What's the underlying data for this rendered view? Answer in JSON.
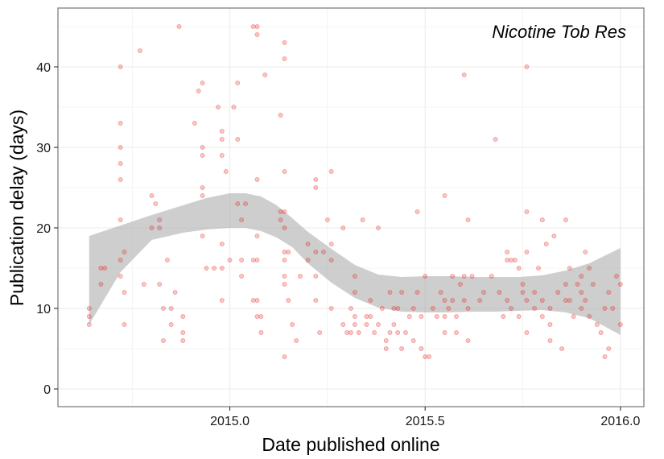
{
  "chart_data": {
    "type": "scatter",
    "title": "Nicotine Tob Res",
    "xlabel": "Date published online",
    "ylabel": "Publication delay (days)",
    "xlim": [
      2014.56,
      2016.06
    ],
    "ylim": [
      -2.2,
      47.3
    ],
    "x_ticks": [
      2015.0,
      2015.5,
      2016.0
    ],
    "x_tick_labels": [
      "2015.0",
      "2015.5",
      "2016.0"
    ],
    "y_ticks": [
      0,
      10,
      20,
      30,
      40
    ],
    "y_tick_labels": [
      "0",
      "10",
      "20",
      "30",
      "40"
    ],
    "grid": true,
    "legend": "none",
    "colors": {
      "points": "#e41a1c",
      "smooth_band": "#a6a6a6",
      "panel_border": "#7f7f7f",
      "grid": "#ebebeb"
    },
    "series": [
      {
        "values": [
          [
            2014.64,
            10
          ],
          [
            2014.64,
            9
          ],
          [
            2014.64,
            8
          ],
          [
            2014.67,
            15
          ],
          [
            2014.67,
            13
          ],
          [
            2014.68,
            15
          ],
          [
            2014.72,
            40
          ],
          [
            2014.72,
            33
          ],
          [
            2014.72,
            30
          ],
          [
            2014.72,
            28
          ],
          [
            2014.72,
            26
          ],
          [
            2014.72,
            21
          ],
          [
            2014.72,
            16
          ],
          [
            2014.72,
            14
          ],
          [
            2014.73,
            17
          ],
          [
            2014.73,
            12
          ],
          [
            2014.73,
            8
          ],
          [
            2014.77,
            42
          ],
          [
            2014.78,
            13
          ],
          [
            2014.8,
            24
          ],
          [
            2014.8,
            20
          ],
          [
            2014.81,
            23
          ],
          [
            2014.82,
            21
          ],
          [
            2014.82,
            20
          ],
          [
            2014.82,
            13
          ],
          [
            2014.83,
            10
          ],
          [
            2014.83,
            6
          ],
          [
            2014.84,
            16
          ],
          [
            2014.85,
            10
          ],
          [
            2014.85,
            8
          ],
          [
            2014.86,
            12
          ],
          [
            2014.87,
            45
          ],
          [
            2014.88,
            9
          ],
          [
            2014.88,
            7
          ],
          [
            2014.88,
            6
          ],
          [
            2014.91,
            33
          ],
          [
            2014.92,
            37
          ],
          [
            2014.93,
            38
          ],
          [
            2014.93,
            30
          ],
          [
            2014.93,
            29
          ],
          [
            2014.93,
            25
          ],
          [
            2014.93,
            24
          ],
          [
            2014.93,
            19
          ],
          [
            2014.94,
            15
          ],
          [
            2014.96,
            15
          ],
          [
            2014.97,
            35
          ],
          [
            2014.98,
            32
          ],
          [
            2014.98,
            31
          ],
          [
            2014.98,
            29
          ],
          [
            2014.98,
            18
          ],
          [
            2014.98,
            15
          ],
          [
            2014.98,
            11
          ],
          [
            2014.99,
            27
          ],
          [
            2015.0,
            16
          ],
          [
            2015.01,
            35
          ],
          [
            2015.02,
            38
          ],
          [
            2015.02,
            31
          ],
          [
            2015.02,
            23
          ],
          [
            2015.03,
            21
          ],
          [
            2015.03,
            16
          ],
          [
            2015.03,
            14
          ],
          [
            2015.04,
            23
          ],
          [
            2015.06,
            45
          ],
          [
            2015.07,
            45
          ],
          [
            2015.07,
            44
          ],
          [
            2015.07,
            26
          ],
          [
            2015.07,
            19
          ],
          [
            2015.06,
            16
          ],
          [
            2015.07,
            16
          ],
          [
            2015.06,
            11
          ],
          [
            2015.07,
            11
          ],
          [
            2015.07,
            9
          ],
          [
            2015.08,
            9
          ],
          [
            2015.08,
            7
          ],
          [
            2015.09,
            39
          ],
          [
            2015.13,
            34
          ],
          [
            2015.13,
            22
          ],
          [
            2015.13,
            21
          ],
          [
            2015.14,
            43
          ],
          [
            2015.14,
            41
          ],
          [
            2015.14,
            27
          ],
          [
            2015.14,
            22
          ],
          [
            2015.14,
            20
          ],
          [
            2015.14,
            17
          ],
          [
            2015.14,
            16
          ],
          [
            2015.14,
            14
          ],
          [
            2015.14,
            13
          ],
          [
            2015.14,
            4
          ],
          [
            2015.15,
            17
          ],
          [
            2015.15,
            11
          ],
          [
            2015.16,
            8
          ],
          [
            2015.17,
            6
          ],
          [
            2015.18,
            14
          ],
          [
            2015.2,
            18
          ],
          [
            2015.2,
            16
          ],
          [
            2015.22,
            26
          ],
          [
            2015.22,
            25
          ],
          [
            2015.22,
            17
          ],
          [
            2015.22,
            14
          ],
          [
            2015.22,
            11
          ],
          [
            2015.23,
            7
          ],
          [
            2015.24,
            17
          ],
          [
            2015.25,
            21
          ],
          [
            2015.26,
            27
          ],
          [
            2015.26,
            18
          ],
          [
            2015.26,
            16
          ],
          [
            2015.26,
            10
          ],
          [
            2015.29,
            20
          ],
          [
            2015.29,
            8
          ],
          [
            2015.3,
            7
          ],
          [
            2015.31,
            7
          ],
          [
            2015.31,
            10
          ],
          [
            2015.32,
            14
          ],
          [
            2015.32,
            12
          ],
          [
            2015.32,
            9
          ],
          [
            2015.32,
            8
          ],
          [
            2015.33,
            7
          ],
          [
            2015.34,
            21
          ],
          [
            2015.35,
            9
          ],
          [
            2015.35,
            8
          ],
          [
            2015.36,
            11
          ],
          [
            2015.36,
            9
          ],
          [
            2015.37,
            7
          ],
          [
            2015.38,
            20
          ],
          [
            2015.38,
            8
          ],
          [
            2015.39,
            10
          ],
          [
            2015.4,
            6
          ],
          [
            2015.4,
            5
          ],
          [
            2015.41,
            7
          ],
          [
            2015.41,
            12
          ],
          [
            2015.42,
            10
          ],
          [
            2015.42,
            8
          ],
          [
            2015.43,
            10
          ],
          [
            2015.43,
            7
          ],
          [
            2015.44,
            12
          ],
          [
            2015.44,
            5
          ],
          [
            2015.45,
            7
          ],
          [
            2015.46,
            9
          ],
          [
            2015.47,
            10
          ],
          [
            2015.47,
            6
          ],
          [
            2015.48,
            22
          ],
          [
            2015.48,
            12
          ],
          [
            2015.49,
            9
          ],
          [
            2015.49,
            5
          ],
          [
            2015.5,
            14
          ],
          [
            2015.5,
            4
          ],
          [
            2015.51,
            4
          ],
          [
            2015.52,
            10
          ],
          [
            2015.53,
            9
          ],
          [
            2015.54,
            12
          ],
          [
            2015.55,
            24
          ],
          [
            2015.55,
            11
          ],
          [
            2015.55,
            9
          ],
          [
            2015.55,
            7
          ],
          [
            2015.56,
            10
          ],
          [
            2015.57,
            14
          ],
          [
            2015.57,
            11
          ],
          [
            2015.58,
            9
          ],
          [
            2015.58,
            7
          ],
          [
            2015.59,
            13
          ],
          [
            2015.6,
            39
          ],
          [
            2015.6,
            14
          ],
          [
            2015.6,
            11
          ],
          [
            2015.61,
            21
          ],
          [
            2015.61,
            10
          ],
          [
            2015.61,
            6
          ],
          [
            2015.62,
            14
          ],
          [
            2015.64,
            11
          ],
          [
            2015.65,
            12
          ],
          [
            2015.67,
            14
          ],
          [
            2015.68,
            31
          ],
          [
            2015.69,
            12
          ],
          [
            2015.7,
            9
          ],
          [
            2015.71,
            17
          ],
          [
            2015.71,
            16
          ],
          [
            2015.71,
            11
          ],
          [
            2015.72,
            16
          ],
          [
            2015.72,
            10
          ],
          [
            2015.73,
            16
          ],
          [
            2015.74,
            15
          ],
          [
            2015.74,
            9
          ],
          [
            2015.75,
            13
          ],
          [
            2015.75,
            12
          ],
          [
            2015.76,
            40
          ],
          [
            2015.76,
            22
          ],
          [
            2015.76,
            17
          ],
          [
            2015.76,
            11
          ],
          [
            2015.76,
            7
          ],
          [
            2015.78,
            12
          ],
          [
            2015.78,
            10
          ],
          [
            2015.79,
            15
          ],
          [
            2015.8,
            21
          ],
          [
            2015.8,
            11
          ],
          [
            2015.8,
            9
          ],
          [
            2015.81,
            18
          ],
          [
            2015.82,
            10
          ],
          [
            2015.82,
            8
          ],
          [
            2015.82,
            6
          ],
          [
            2015.83,
            19
          ],
          [
            2015.84,
            12
          ],
          [
            2015.85,
            5
          ],
          [
            2015.86,
            21
          ],
          [
            2015.86,
            13
          ],
          [
            2015.86,
            11
          ],
          [
            2015.87,
            15
          ],
          [
            2015.87,
            11
          ],
          [
            2015.88,
            9
          ],
          [
            2015.89,
            13
          ],
          [
            2015.9,
            14
          ],
          [
            2015.9,
            12
          ],
          [
            2015.9,
            10
          ],
          [
            2015.91,
            17
          ],
          [
            2015.91,
            11
          ],
          [
            2015.92,
            15
          ],
          [
            2015.92,
            9
          ],
          [
            2015.93,
            13
          ],
          [
            2015.94,
            8
          ],
          [
            2015.95,
            7
          ],
          [
            2015.96,
            10
          ],
          [
            2015.96,
            4
          ],
          [
            2015.97,
            12
          ],
          [
            2015.97,
            5
          ],
          [
            2015.98,
            10
          ],
          [
            2015.99,
            14
          ],
          [
            2016.0,
            13
          ],
          [
            2016.0,
            8
          ]
        ]
      }
    ],
    "smooth_band": {
      "x": [
        2014.64,
        2014.72,
        2014.8,
        2014.88,
        2014.94,
        2015.0,
        2015.04,
        2015.08,
        2015.12,
        2015.16,
        2015.2,
        2015.26,
        2015.32,
        2015.38,
        2015.44,
        2015.5,
        2015.56,
        2015.62,
        2015.68,
        2015.74,
        2015.8,
        2015.86,
        2015.92,
        2016.0
      ],
      "lower": [
        8.0,
        14.5,
        18.5,
        19.4,
        19.8,
        20.0,
        20.0,
        19.6,
        18.8,
        17.6,
        15.6,
        13.2,
        11.3,
        10.1,
        9.6,
        9.5,
        9.5,
        9.6,
        9.6,
        9.7,
        9.8,
        9.5,
        8.8,
        6.7
      ],
      "upper": [
        19.0,
        20.3,
        21.6,
        22.8,
        23.7,
        24.3,
        24.3,
        23.9,
        22.8,
        21.2,
        19.5,
        17.4,
        15.4,
        14.2,
        13.9,
        14.0,
        14.0,
        13.9,
        13.9,
        13.9,
        14.1,
        14.7,
        15.6,
        17.5
      ]
    }
  }
}
